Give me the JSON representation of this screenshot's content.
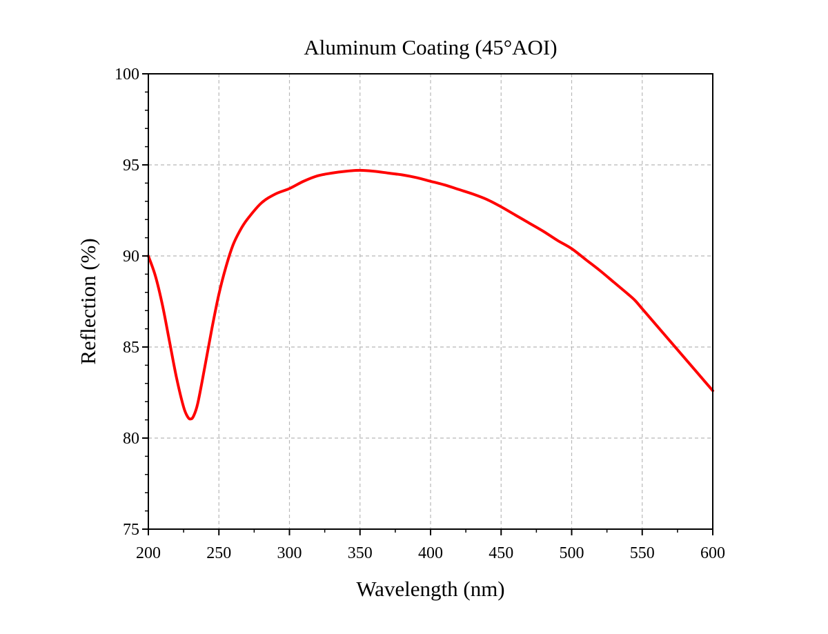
{
  "chart_data": {
    "type": "line",
    "title": "Aluminum Coating (45°AOI)",
    "xlabel": "Wavelength (nm)",
    "ylabel": "Reflection (%)",
    "xlim": [
      200,
      600
    ],
    "ylim": [
      75,
      100
    ],
    "x_ticks": [
      200,
      250,
      300,
      350,
      400,
      450,
      500,
      550,
      600
    ],
    "y_ticks": [
      75,
      80,
      85,
      90,
      95,
      100
    ],
    "grid": true,
    "legend": "none",
    "series": [
      {
        "color": "#ff0000",
        "x": [
          200,
          205,
          210,
          215,
          220,
          225,
          228,
          230,
          232,
          235,
          240,
          245,
          250,
          255,
          260,
          265,
          270,
          280,
          290,
          300,
          310,
          320,
          330,
          340,
          350,
          360,
          370,
          380,
          390,
          400,
          410,
          420,
          430,
          440,
          450,
          460,
          470,
          480,
          490,
          500,
          510,
          520,
          530,
          540,
          545,
          550,
          560,
          570,
          580,
          590,
          600
        ],
        "y": [
          90.0,
          88.9,
          87.3,
          85.3,
          83.3,
          81.7,
          81.15,
          81.05,
          81.2,
          81.9,
          83.9,
          86.0,
          87.9,
          89.4,
          90.6,
          91.4,
          92.0,
          92.9,
          93.4,
          93.7,
          94.1,
          94.4,
          94.55,
          94.65,
          94.7,
          94.65,
          94.55,
          94.45,
          94.3,
          94.1,
          93.9,
          93.65,
          93.4,
          93.1,
          92.7,
          92.25,
          91.8,
          91.35,
          90.85,
          90.4,
          89.8,
          89.2,
          88.55,
          87.9,
          87.55,
          87.1,
          86.2,
          85.3,
          84.4,
          83.5,
          82.6
        ]
      }
    ]
  }
}
